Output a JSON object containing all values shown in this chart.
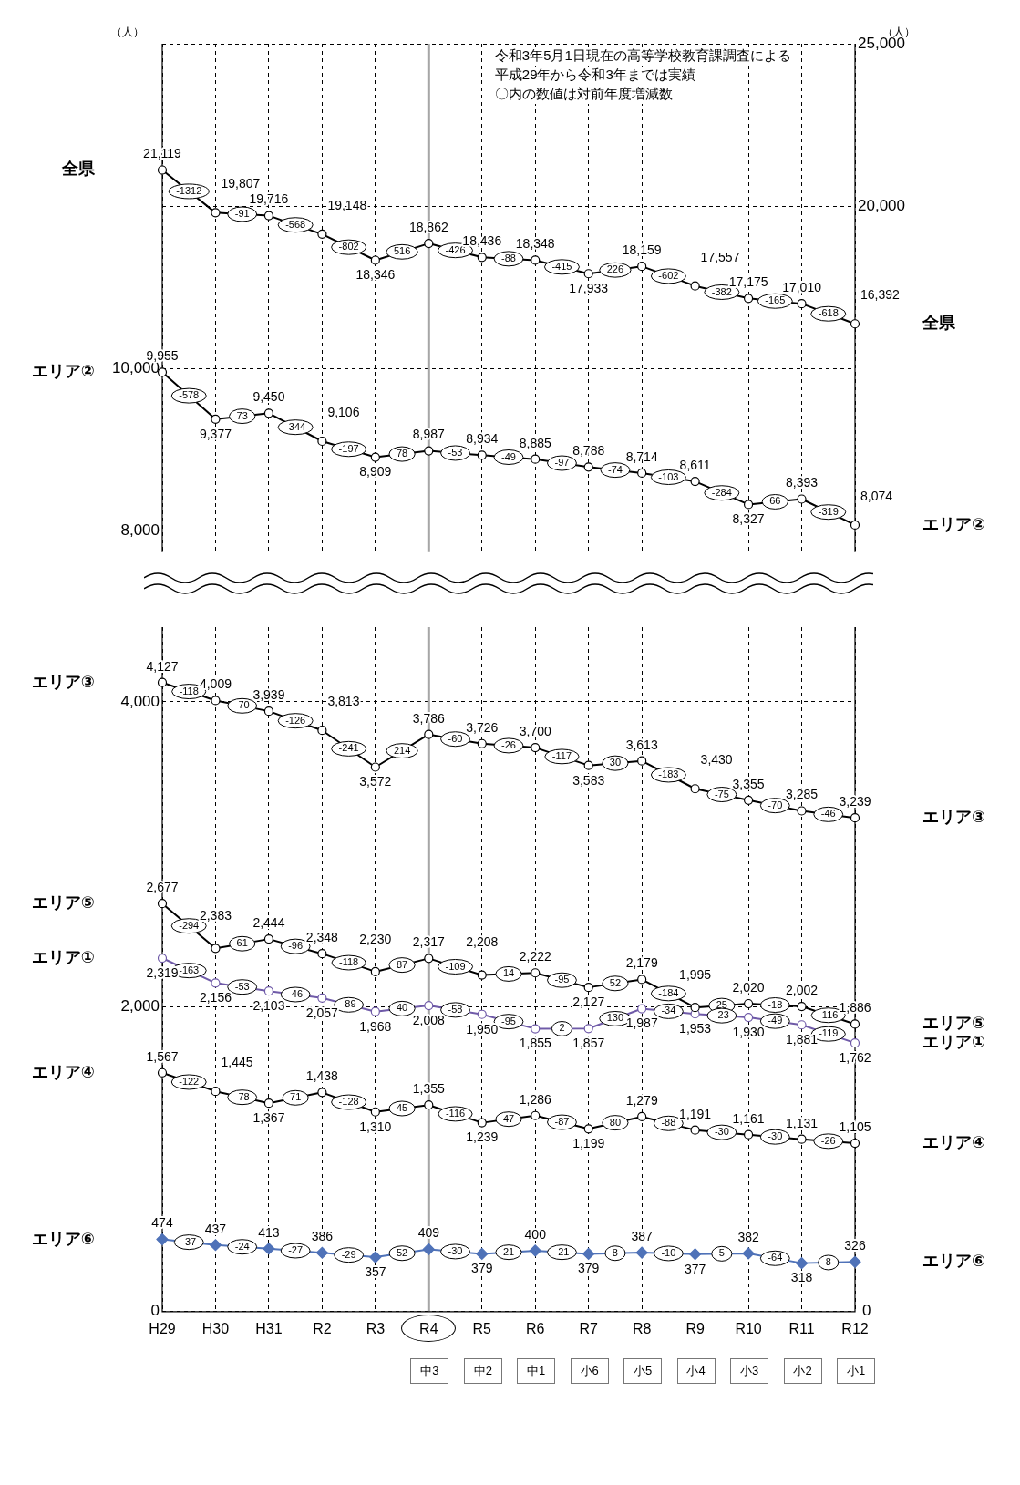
{
  "chart_data": [
    {
      "type": "line",
      "categories": [
        "H29",
        "H30",
        "H31",
        "R2",
        "R3",
        "R4",
        "R5",
        "R6",
        "R7",
        "R8",
        "R9",
        "R10",
        "R11",
        "R12"
      ],
      "tick_labels": "y",
      "ylabel": "（人）",
      "y2label": "（人）",
      "ylim": [
        7750,
        14000
      ],
      "yticks": [
        {
          "value": 8000,
          "label": "8,000"
        },
        {
          "value": 10000,
          "label": "10,000"
        }
      ],
      "y2lim": [
        9400,
        25000
      ],
      "y2ticks": [
        {
          "value": 20000,
          "label": "20,000"
        },
        {
          "value": 25000,
          "label": "25,000"
        }
      ],
      "grid": true,
      "legend": false,
      "marker": "circle",
      "ref_lines": [
        {
          "axis": "x",
          "value": "R4",
          "color": "#a6a6a6"
        }
      ],
      "series": [
        {
          "name": "全県",
          "color": "#000000",
          "axis": "y2",
          "values": [
            21119,
            19807,
            19716,
            19148,
            18346,
            18862,
            18436,
            18348,
            17933,
            18159,
            17557,
            17175,
            17010,
            16392
          ],
          "value_labels": [
            "21,119",
            "19,807",
            "19,716",
            "19,148",
            "18,346",
            "18,862",
            "18,436",
            "18,348",
            "17,933",
            "18,159",
            "17,557",
            "17,175",
            "17,010",
            "16,392"
          ]
        },
        {
          "name": "エリア②",
          "color": "#000000",
          "values": [
            9955,
            9377,
            9450,
            9106,
            8909,
            8987,
            8934,
            8885,
            8788,
            8714,
            8611,
            8327,
            8393,
            8074
          ],
          "value_labels": [
            "9,955",
            "9,377",
            "9,450",
            "9,106",
            "8,909",
            "8,987",
            "8,934",
            "8,885",
            "8,788",
            "8,714",
            "8,611",
            "8,327",
            "8,393",
            "8,074"
          ]
        }
      ],
      "annotations": [
        "令和3年5月1日現在の高等学校教育課調査による",
        "平成29年から令和3年までは実績",
        "〇内の数値は対前年度増減数",
        {
          "text": "-1312"
        },
        {
          "text": "-91"
        },
        {
          "text": "-568"
        },
        {
          "text": "-802"
        },
        {
          "text": "516"
        },
        {
          "text": "-426"
        },
        {
          "text": "-88"
        },
        {
          "text": "-415"
        },
        {
          "text": "226"
        },
        {
          "text": "-602"
        },
        {
          "text": "-382"
        },
        {
          "text": "-165"
        },
        {
          "text": "-618"
        },
        {
          "text": "-578"
        },
        {
          "text": "73"
        },
        {
          "text": "-344"
        },
        {
          "text": "-197"
        },
        {
          "text": "78"
        },
        {
          "text": "-53"
        },
        {
          "text": "-49"
        },
        {
          "text": "-97"
        },
        {
          "text": "-74"
        },
        {
          "text": "-103"
        },
        {
          "text": "-284"
        },
        {
          "text": "66"
        },
        {
          "text": "-319"
        }
      ]
    },
    {
      "type": "line",
      "categories": [
        "H29",
        "H30",
        "H31",
        "R2",
        "R3",
        "R4",
        "R5",
        "R6",
        "R7",
        "R8",
        "R9",
        "R10",
        "R11",
        "R12"
      ],
      "ylim": [
        0,
        4490
      ],
      "yticks": [
        0,
        {
          "value": 2000,
          "label": "2,000"
        },
        {
          "value": 4000,
          "label": "4,000"
        }
      ],
      "grid": true,
      "legend": false,
      "marker": "circle",
      "ref_lines": [
        {
          "axis": "x",
          "value": "R4",
          "color": "#a6a6a6"
        }
      ],
      "series": [
        {
          "name": "エリア③",
          "color": "#000000",
          "values": [
            4127,
            4009,
            3939,
            3813,
            3572,
            3786,
            3726,
            3700,
            3583,
            3613,
            3430,
            3355,
            3285,
            3239
          ],
          "value_labels": [
            "4,127",
            "4,009",
            "3,939",
            "3,813",
            "3,572",
            "3,786",
            "3,726",
            "3,700",
            "3,583",
            "3,613",
            "3,430",
            "3,355",
            "3,285",
            "3,239"
          ]
        },
        {
          "name": "エリア⑤",
          "color": "#000000",
          "values": [
            2677,
            2383,
            2444,
            2348,
            2230,
            2317,
            2208,
            2222,
            2127,
            2179,
            1995,
            2020,
            2002,
            1886
          ],
          "value_labels": [
            "2,677",
            "2,383",
            "2,444",
            "2,348",
            "2,230",
            "2,317",
            "2,208",
            "2,222",
            "2,127",
            "2,179",
            "1,995",
            "2,020",
            "2,002",
            "1,886"
          ]
        },
        {
          "name": "エリア①",
          "color": "#6f5aa8",
          "values": [
            2319,
            2156,
            2103,
            2057,
            1968,
            2008,
            1950,
            1855,
            1857,
            1987,
            1953,
            1930,
            1881,
            1762
          ],
          "value_labels": [
            "2,319",
            "2,156",
            "2,103",
            "2,057",
            "1,968",
            "2,008",
            "1,950",
            "1,855",
            "1,857",
            "1,987",
            "1,953",
            "1,930",
            "1,881",
            "1,762"
          ]
        },
        {
          "name": "エリア④",
          "color": "#000000",
          "values": [
            1567,
            1445,
            1367,
            1438,
            1310,
            1355,
            1239,
            1286,
            1199,
            1279,
            1191,
            1161,
            1131,
            1105
          ],
          "value_labels": [
            "1,567",
            "1,445",
            "1,367",
            "1,438",
            "1,310",
            "1,355",
            "1,239",
            "1,286",
            "1,199",
            "1,279",
            "1,191",
            "1,161",
            "1,131",
            "1,105"
          ]
        },
        {
          "name": "エリア⑥",
          "color": "#4f72b8",
          "marker": "diamond",
          "values": [
            474,
            437,
            413,
            386,
            357,
            409,
            379,
            400,
            379,
            387,
            377,
            382,
            318,
            326
          ],
          "value_labels": [
            "474",
            "437",
            "413",
            "386",
            "357",
            "409",
            "379",
            "400",
            "379",
            "387",
            "377",
            "382",
            "318",
            "326"
          ]
        }
      ],
      "annotations": [
        {
          "text": "-118"
        },
        {
          "text": "-70"
        },
        {
          "text": "-126"
        },
        {
          "text": "-241"
        },
        {
          "text": "214"
        },
        {
          "text": "-60"
        },
        {
          "text": "-26"
        },
        {
          "text": "-117"
        },
        {
          "text": "30"
        },
        {
          "text": "-183"
        },
        {
          "text": "-75"
        },
        {
          "text": "-70"
        },
        {
          "text": "-46"
        },
        {
          "text": "-294"
        },
        {
          "text": "61"
        },
        {
          "text": "-96"
        },
        {
          "text": "-118"
        },
        {
          "text": "87"
        },
        {
          "text": "-109"
        },
        {
          "text": "14"
        },
        {
          "text": "-95"
        },
        {
          "text": "52"
        },
        {
          "text": "-184"
        },
        {
          "text": "25"
        },
        {
          "text": "-18"
        },
        {
          "text": "-116"
        },
        {
          "text": "-163"
        },
        {
          "text": "-53"
        },
        {
          "text": "-46"
        },
        {
          "text": "-89"
        },
        {
          "text": "40"
        },
        {
          "text": "-58"
        },
        {
          "text": "-95"
        },
        {
          "text": "2"
        },
        {
          "text": "130"
        },
        {
          "text": "-34"
        },
        {
          "text": "-23"
        },
        {
          "text": "-49"
        },
        {
          "text": "-119"
        },
        {
          "text": "-122"
        },
        {
          "text": "-78"
        },
        {
          "text": "71"
        },
        {
          "text": "-128"
        },
        {
          "text": "45"
        },
        {
          "text": "-116"
        },
        {
          "text": "47"
        },
        {
          "text": "-87"
        },
        {
          "text": "80"
        },
        {
          "text": "-88"
        },
        {
          "text": "-30"
        },
        {
          "text": "-30"
        },
        {
          "text": "-26"
        },
        {
          "text": "-37"
        },
        {
          "text": "-24"
        },
        {
          "text": "-27"
        },
        {
          "text": "-29"
        },
        {
          "text": "52"
        },
        {
          "text": "-30"
        },
        {
          "text": "21"
        },
        {
          "text": "-21"
        },
        {
          "text": "8"
        },
        {
          "text": "-10"
        },
        {
          "text": "5"
        },
        {
          "text": "-64"
        },
        {
          "text": "8"
        },
        "0",
        "中3",
        "中2",
        "中1",
        "小6",
        "小5",
        "小4",
        "小3",
        "小2",
        "小1"
      ]
    }
  ]
}
